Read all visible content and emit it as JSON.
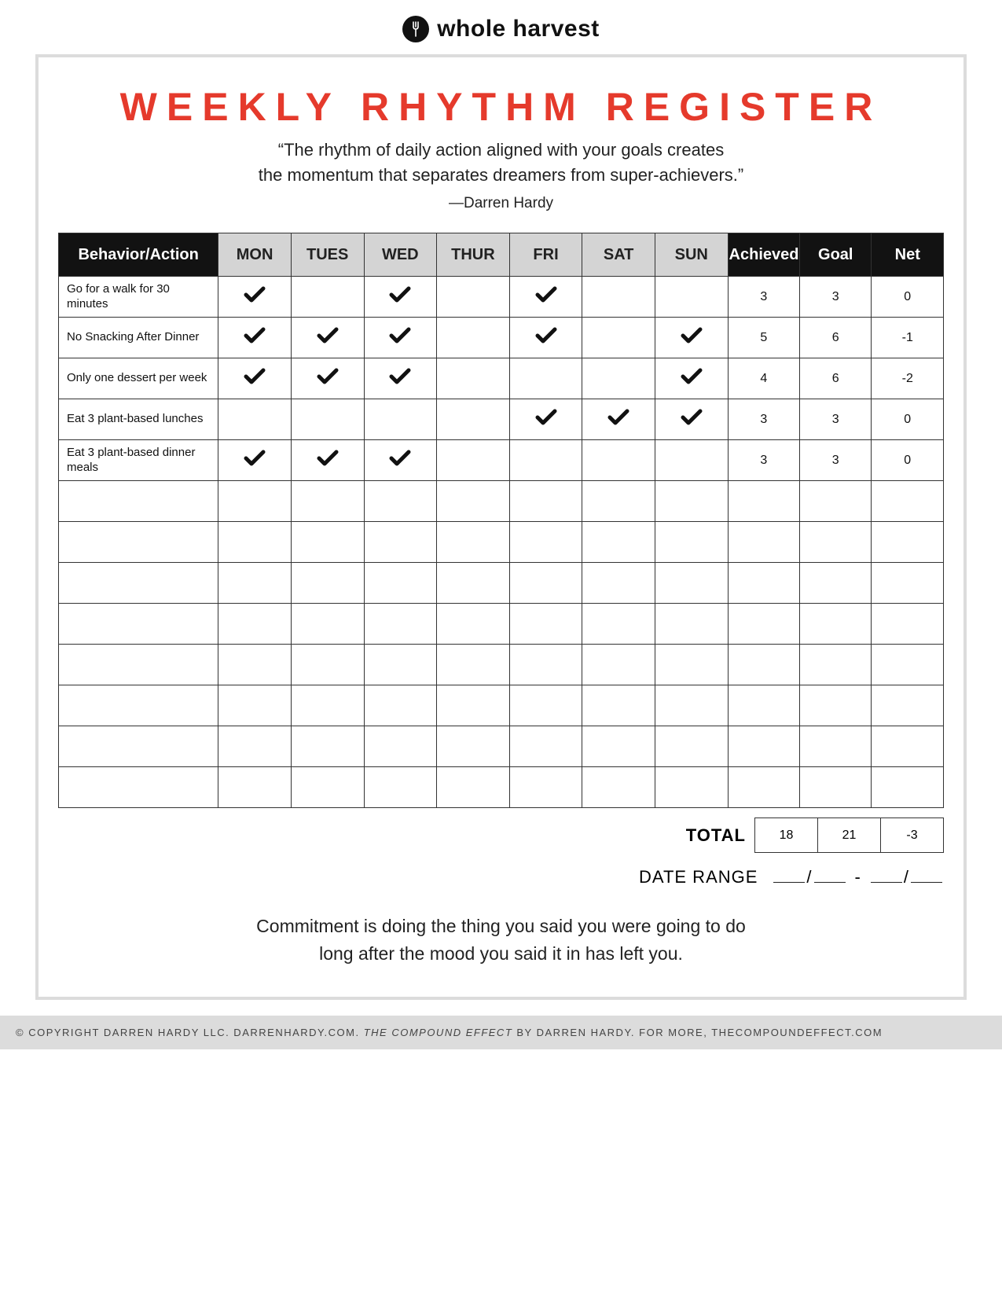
{
  "brand": {
    "name": "whole harvest"
  },
  "title": "WEEKLY RHYTHM REGISTER",
  "quote": {
    "line1": "“The rhythm of daily action aligned with your goals creates",
    "line2": "the momentum that separates dreamers from super-achievers.”",
    "attribution": "—Darren Hardy"
  },
  "table": {
    "behavior_header": "Behavior/Action",
    "days": [
      "MON",
      "TUES",
      "WED",
      "THUR",
      "FRI",
      "SAT",
      "SUN"
    ],
    "stat_headers": [
      "Achieved",
      "Goal",
      "Net"
    ],
    "day_header_bg": "#d4d4d4",
    "dark_header_bg": "#121212",
    "border_color": "#333333",
    "total_rows": 13,
    "check_color": "#111111",
    "rows": [
      {
        "label": "Go for a walk for 30 minutes",
        "checks": [
          true,
          false,
          true,
          false,
          true,
          false,
          false
        ],
        "achieved": "3",
        "goal": "3",
        "net": "0"
      },
      {
        "label": "No Snacking After Dinner",
        "checks": [
          true,
          true,
          true,
          false,
          true,
          false,
          true
        ],
        "achieved": "5",
        "goal": "6",
        "net": "-1"
      },
      {
        "label": "Only one dessert per week",
        "checks": [
          true,
          true,
          true,
          false,
          false,
          false,
          true
        ],
        "achieved": "4",
        "goal": "6",
        "net": "-2"
      },
      {
        "label": "Eat 3 plant-based lunches",
        "checks": [
          false,
          false,
          false,
          false,
          true,
          true,
          true
        ],
        "achieved": "3",
        "goal": "3",
        "net": "0"
      },
      {
        "label": "Eat 3 plant-based dinner meals",
        "checks": [
          true,
          true,
          true,
          false,
          false,
          false,
          false
        ],
        "achieved": "3",
        "goal": "3",
        "net": "0"
      }
    ]
  },
  "totals": {
    "label": "TOTAL",
    "achieved": "18",
    "goal": "21",
    "net": "-3"
  },
  "date_range": {
    "label": "DATE RANGE",
    "slash": "/",
    "dash": "-"
  },
  "footer_quote": {
    "line1": "Commitment is doing the thing you said you were going to do",
    "line2": "long after the mood you said it in has left you."
  },
  "copyright": {
    "prefix": "© COPYRIGHT DARREN HARDY LLC. DARRENHARDY.COM. ",
    "italic": "THE COMPOUND EFFECT",
    "suffix": " BY DARREN HARDY. FOR MORE, THECOMPOUNDEFFECT.COM"
  },
  "colors": {
    "title": "#e53a2c",
    "frame_border": "#dcdcdc",
    "text": "#222222"
  }
}
